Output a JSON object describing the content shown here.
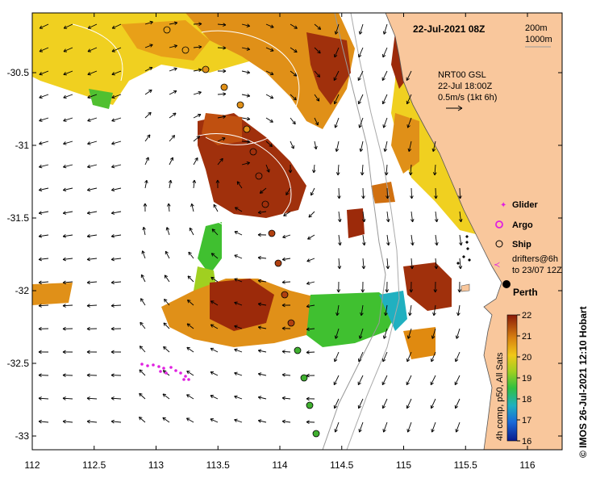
{
  "title": "22-Jul-2021 08Z",
  "depth_legend": [
    "200m",
    "1000m"
  ],
  "current_info": {
    "line1": "NRT00 GSL",
    "line2": "22-Jul 18:00Z",
    "line3": "0.5m/s (1kt 6h)"
  },
  "legend": {
    "glider": "Glider",
    "argo": "Argo",
    "ship": "Ship",
    "drifters_line1": "drifters@6h",
    "drifters_line2": "to 23/07 12Z"
  },
  "city": "Perth",
  "colorbar": {
    "ticks": [
      "22",
      "21",
      "20",
      "19",
      "18",
      "17",
      "16"
    ],
    "caption": "4h comp, p50, All Sats"
  },
  "credit": "© IMOS 26-Jul-2021 12:10 Hobart",
  "axes": {
    "x_ticks": [
      "112",
      "112.5",
      "113",
      "113.5",
      "114",
      "114.5",
      "115",
      "115.5",
      "116"
    ],
    "y_ticks": [
      "-30.5",
      "-31",
      "-31.5",
      "-32",
      "-32.5",
      "-33"
    ]
  },
  "colors": {
    "land": "#f9c79c",
    "sst_warm": "#9c2a0a",
    "sst_orange": "#e08a10",
    "sst_yellow": "#f0d020",
    "sst_green": "#40c030",
    "glider": "#e020e0"
  }
}
